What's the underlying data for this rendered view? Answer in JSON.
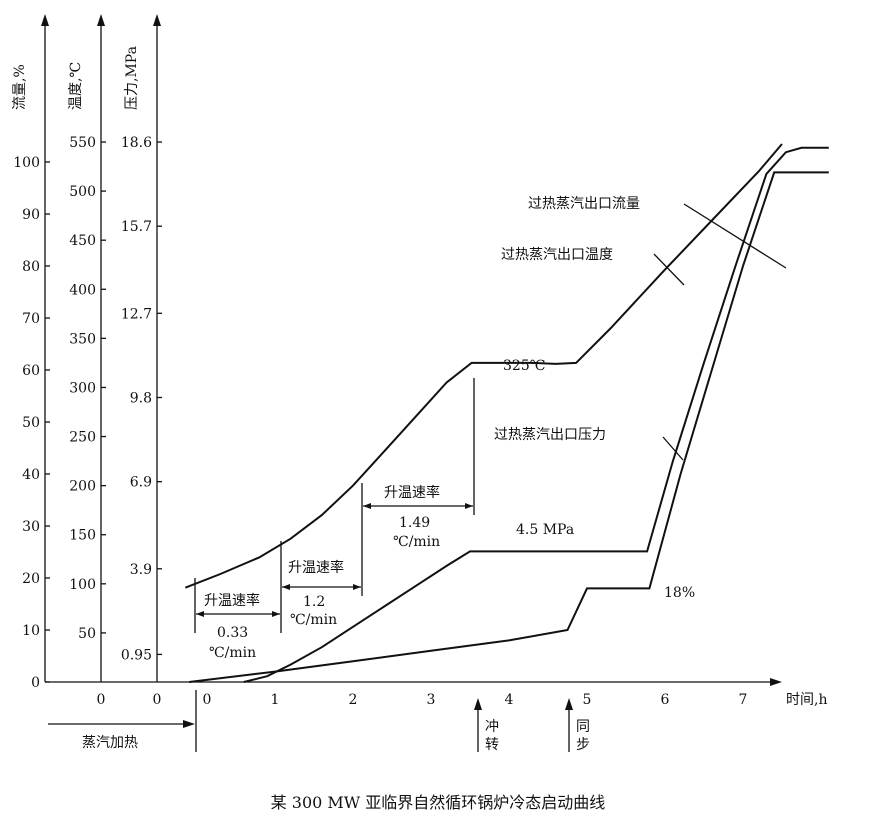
{
  "caption": "某 300 MW 亚临界自然循环锅炉冷态启动曲线",
  "chart_data": {
    "type": "line",
    "xlabel": "时间,h",
    "x_ticks": [
      "0",
      "1",
      "2",
      "3",
      "4",
      "5",
      "6",
      "7"
    ],
    "x_left_zeros": [
      "0",
      "0"
    ],
    "axes": {
      "flow": {
        "label": "流量,%",
        "ticks": [
          "100",
          "90",
          "80",
          "70",
          "60",
          "50",
          "40",
          "30",
          "20",
          "10",
          "0"
        ]
      },
      "temperature": {
        "label": "温度,℃",
        "ticks": [
          "550",
          "500",
          "450",
          "400",
          "350",
          "300",
          "250",
          "200",
          "150",
          "100",
          "50"
        ]
      },
      "pressure": {
        "label": "压力,MPa",
        "ticks": [
          "18.6",
          "15.7",
          "12.7",
          "9.8",
          "6.9",
          "3.9",
          "0.95"
        ]
      }
    },
    "series": [
      {
        "name": "过热蒸汽出口温度",
        "axis": "temperature",
        "x": [
          -0.15,
          0.3,
          0.8,
          1.2,
          1.6,
          2.0,
          2.4,
          2.8,
          3.2,
          3.52,
          3.9,
          4.3,
          4.6,
          4.86,
          5.3,
          6.0,
          6.6,
          7.2,
          7.5
        ],
        "y": [
          96,
          110,
          127,
          146,
          170,
          200,
          235,
          270,
          305,
          325,
          325,
          325,
          324,
          325,
          360,
          420,
          470,
          520,
          548
        ]
      },
      {
        "name": "过热蒸汽出口流量",
        "axis": "flow",
        "x": [
          -0.1,
          1.0,
          2.0,
          3.0,
          4.0,
          4.75,
          5.0,
          5.8,
          6.2,
          6.6,
          7.0,
          7.4,
          8.1
        ],
        "y": [
          0,
          2,
          4,
          6,
          8,
          10,
          18,
          18,
          40,
          60,
          80,
          98,
          98
        ]
      },
      {
        "name": "过热蒸汽出口压力",
        "axis": "pressure",
        "x": [
          0.6,
          0.9,
          1.2,
          1.6,
          2.0,
          2.4,
          2.8,
          3.2,
          3.5,
          4.0,
          5.0,
          5.77,
          6.1,
          6.5,
          6.9,
          7.3,
          7.55,
          7.75,
          8.1
        ],
        "y": [
          0,
          0.2,
          0.6,
          1.2,
          1.9,
          2.6,
          3.3,
          4.0,
          4.5,
          4.5,
          4.5,
          4.5,
          7.6,
          11.0,
          14.3,
          17.5,
          18.25,
          18.4,
          18.4
        ]
      }
    ],
    "annotations": [
      {
        "text": "325℃",
        "x": 3.9,
        "y_temp": 335
      },
      {
        "text": "4.5 MPa",
        "x": 4.8,
        "y_pressure": 5.1
      },
      {
        "text": "18%",
        "x": 6.1,
        "y_flow": 17
      },
      {
        "text": "升温速率",
        "rate": "0.33",
        "unit": "℃/min"
      },
      {
        "text": "升温速率",
        "rate": "1.2",
        "unit": "℃/min"
      },
      {
        "text": "升温速率",
        "rate": "1.49",
        "unit": "℃/min"
      }
    ],
    "events": [
      {
        "label": "蒸汽加热",
        "x": -0.1
      },
      {
        "label_top": "冲",
        "label_bottom": "转",
        "x": 3.55
      },
      {
        "label_top": "同",
        "label_bottom": "步",
        "x": 4.73
      }
    ]
  }
}
